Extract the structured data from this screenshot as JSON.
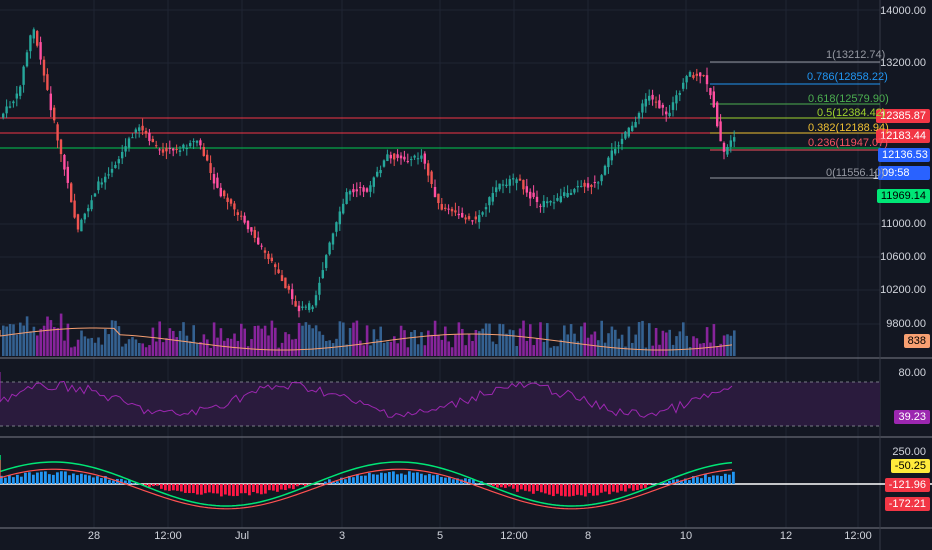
{
  "price_axis": {
    "ticks": [
      "14000.00",
      "13200.00",
      "11000.00",
      "10600.00",
      "10200.00",
      "9800.00"
    ],
    "tags": [
      {
        "text": "12385.87",
        "color": "#f23645",
        "text_color": "#ffffff"
      },
      {
        "text": "12183.44",
        "color": "#f23645",
        "text_color": "#ffffff"
      },
      {
        "text": "12136.53",
        "color": "#2962ff",
        "text_color": "#ffffff"
      },
      {
        "text": "09:58",
        "color": "#2962ff",
        "text_color": "#ffffff"
      },
      {
        "text": "11969.14",
        "color": "#00e676",
        "text_color": "#000000"
      },
      {
        "text": "838",
        "color": "#f7a072",
        "text_color": "#000000"
      }
    ],
    "partial_label": "11"
  },
  "fib_levels": [
    {
      "text": "1(13212.74)",
      "color": "#9598a1"
    },
    {
      "text": "0.786(12858.22)",
      "color": "#2196f3"
    },
    {
      "text": "0.618(12579.90)",
      "color": "#4caf50"
    },
    {
      "text": "0.5(12384.42)",
      "color": "#9fd32d"
    },
    {
      "text": "0.382(12188.94)",
      "color": "#f0c033"
    },
    {
      "text": "0.236(11947.07)",
      "color": "#f7525f"
    },
    {
      "text": "0(11556.10)",
      "color": "#9598a1"
    }
  ],
  "rsi_panel": {
    "ticks": [
      "80.00"
    ],
    "tag": "39.23",
    "tag_color": "#9c27b0"
  },
  "macd_panel": {
    "ticks": [
      "250.00"
    ],
    "tags": [
      {
        "text": "-50.25",
        "color": "#ffeb3b",
        "text_color": "#000000"
      },
      {
        "text": "-121.96",
        "color": "#f23645",
        "text_color": "#ffffff"
      },
      {
        "text": "-172.21",
        "color": "#f23645",
        "text_color": "#ffffff"
      }
    ]
  },
  "time_axis": {
    "labels": [
      "28",
      "12:00",
      "Jul",
      "3",
      "5",
      "12:00",
      "8",
      "10",
      "12",
      "12:00"
    ]
  },
  "colors": {
    "bg": "#131722",
    "up": "#26a69a",
    "down": "#ef5350",
    "down_bright": "#ff4fa0",
    "volume": "#9c27b0"
  }
}
